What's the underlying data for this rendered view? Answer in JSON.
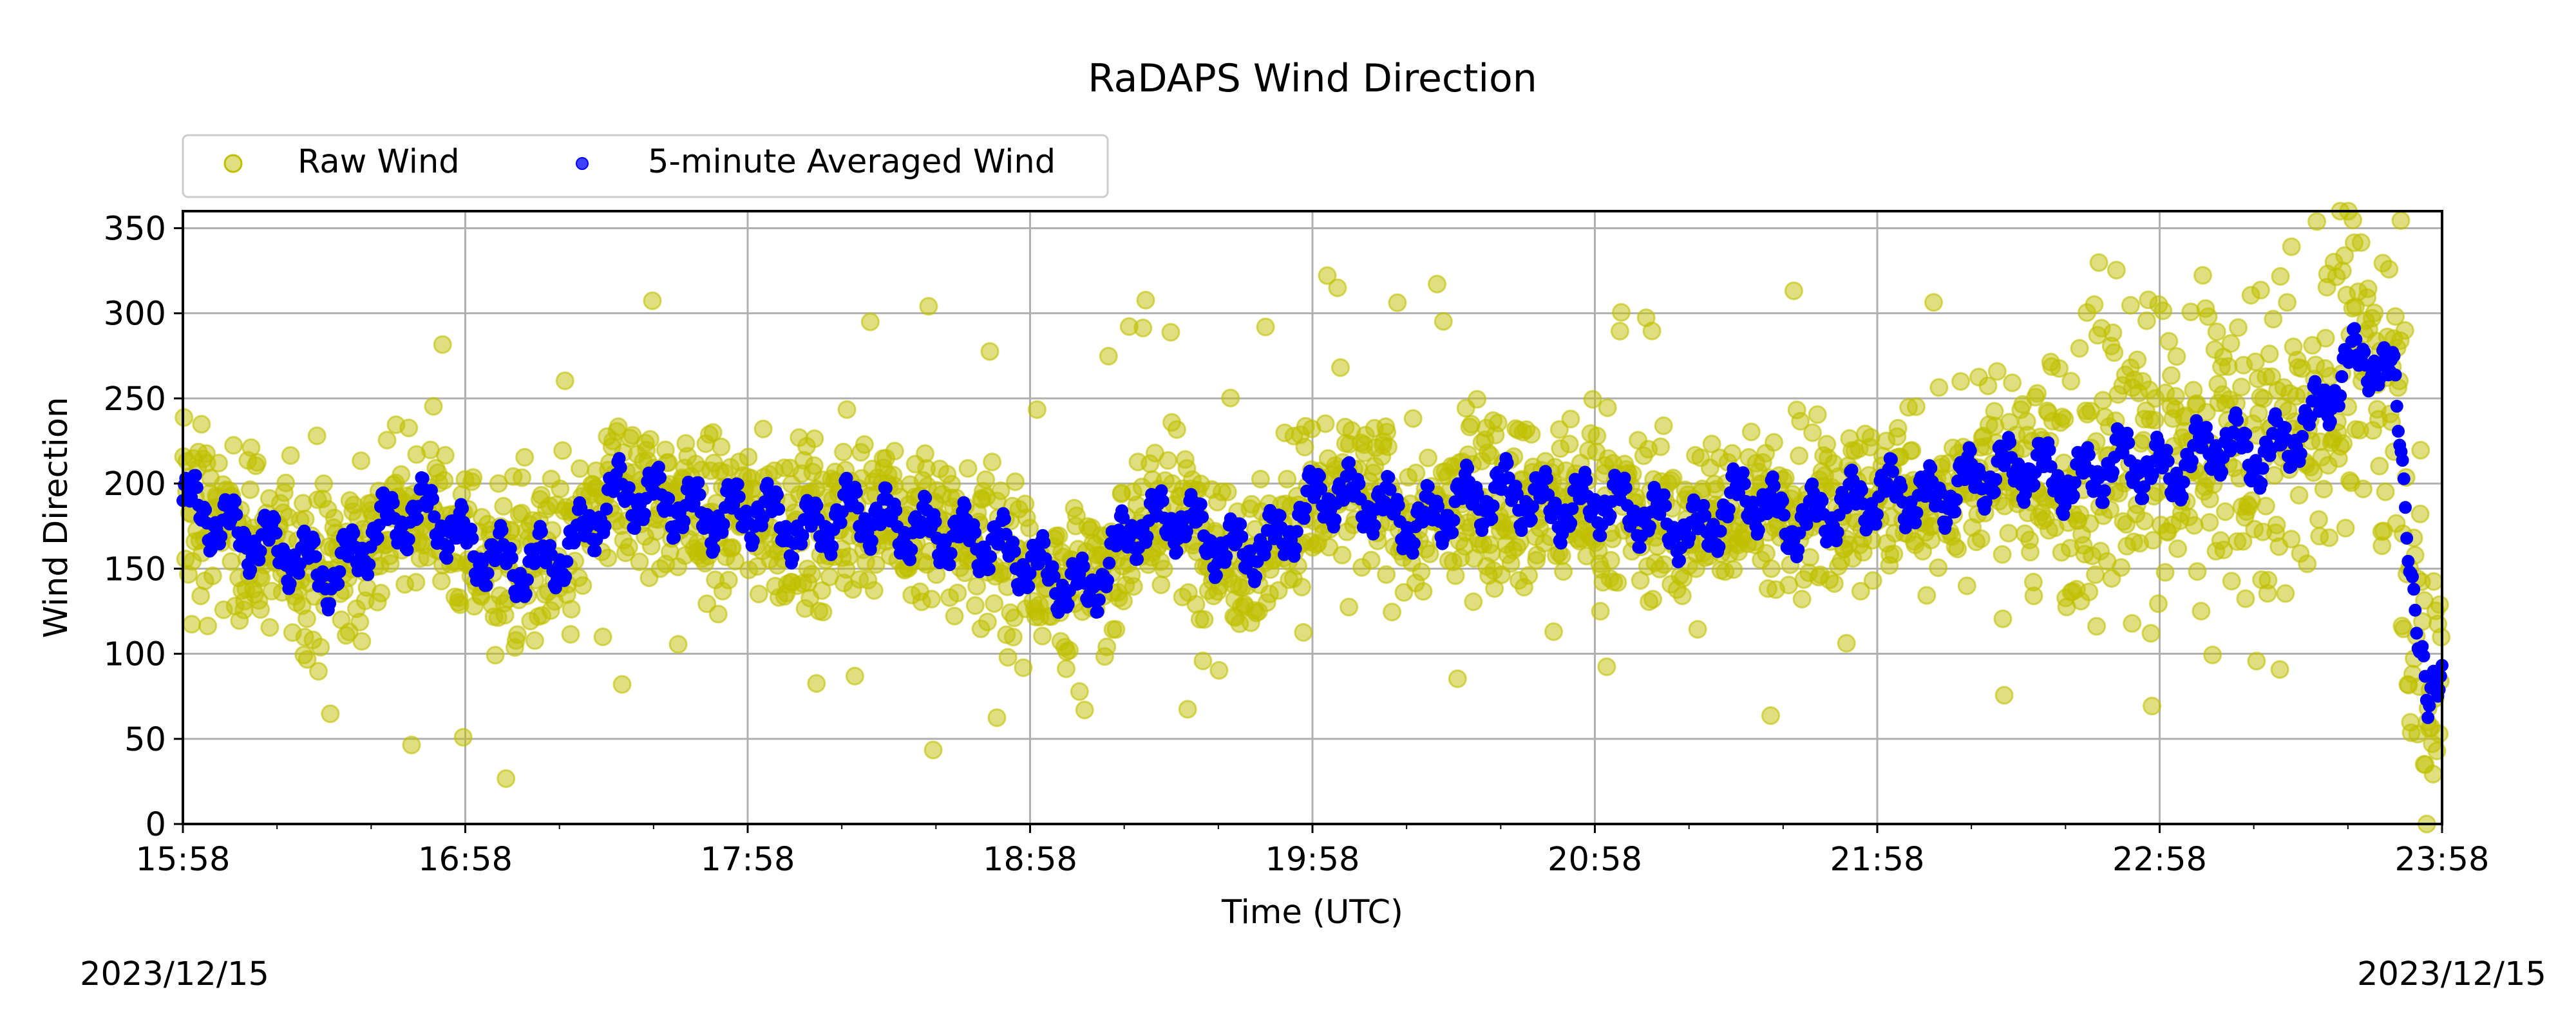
{
  "chart_data": {
    "type": "scatter",
    "title": "RaDAPS Wind Direction",
    "xlabel": "Time (UTC)",
    "ylabel": "Wind Direction",
    "xlim": [
      "15:58",
      "23:58"
    ],
    "ylim": [
      0,
      360
    ],
    "grid": true,
    "legend_placement": "top-left, above plot",
    "x_ticks": [
      "15:58",
      "16:58",
      "17:58",
      "18:58",
      "19:58",
      "20:58",
      "21:58",
      "22:58",
      "23:58"
    ],
    "y_ticks": [
      0,
      50,
      100,
      150,
      200,
      250,
      300,
      350
    ],
    "start_date": "2023/12/15",
    "end_date": "2023/12/15",
    "series": [
      {
        "name": "Raw Wind",
        "color": "#bfbf00",
        "marker": "circle",
        "style": "scatter",
        "note": "scatter of raw readings around the averaged trend, spread roughly ±50, wider spread after 22:30"
      },
      {
        "name": "5-minute Averaged Wind",
        "color": "#0000ff",
        "marker": "dot",
        "style": "dense-line",
        "x": [
          "15:58",
          "16:10",
          "16:20",
          "16:30",
          "16:40",
          "16:50",
          "17:00",
          "17:10",
          "17:20",
          "17:30",
          "17:40",
          "17:50",
          "18:00",
          "18:10",
          "18:20",
          "18:30",
          "18:40",
          "18:50",
          "19:00",
          "19:10",
          "19:20",
          "19:30",
          "19:40",
          "19:50",
          "20:00",
          "20:10",
          "20:20",
          "20:30",
          "20:40",
          "20:50",
          "21:00",
          "21:10",
          "21:20",
          "21:30",
          "21:40",
          "21:50",
          "22:00",
          "22:10",
          "22:20",
          "22:30",
          "22:40",
          "22:50",
          "23:00",
          "23:10",
          "23:20",
          "23:30",
          "23:38",
          "23:44",
          "23:48",
          "23:52",
          "23:55",
          "23:58"
        ],
        "values": [
          190,
          170,
          160,
          145,
          175,
          185,
          160,
          150,
          160,
          195,
          190,
          180,
          185,
          170,
          185,
          175,
          170,
          165,
          150,
          135,
          175,
          180,
          160,
          165,
          195,
          190,
          175,
          190,
          195,
          185,
          190,
          180,
          170,
          195,
          175,
          185,
          195,
          190,
          205,
          210,
          200,
          215,
          205,
          225,
          215,
          235,
          270,
          275,
          255,
          140,
          60,
          90
        ]
      }
    ]
  }
}
